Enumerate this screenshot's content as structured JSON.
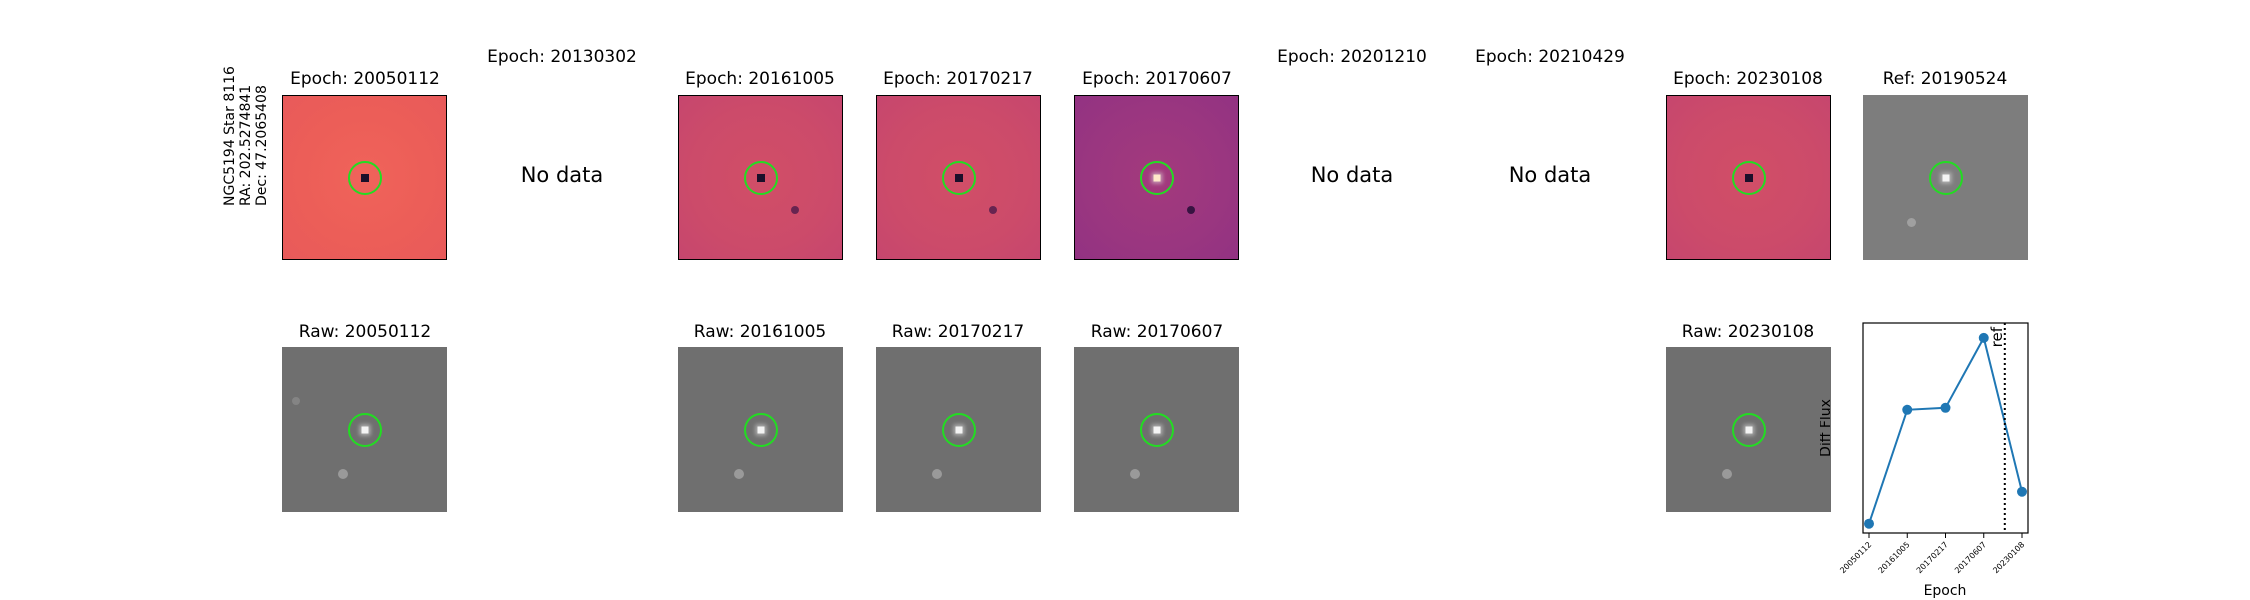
{
  "star": {
    "name": "NGC5194 Star 8116",
    "ra": "RA: 202.5274841",
    "dec": "Dec: 47.2065408"
  },
  "top_row": [
    {
      "title": "Epoch: 20050112",
      "state": "image",
      "colormap": "magma"
    },
    {
      "title": "Epoch: 20130302",
      "state": "no-data",
      "placeholder": "No data"
    },
    {
      "title": "Epoch: 20161005",
      "state": "image",
      "colormap": "magma"
    },
    {
      "title": "Epoch: 20170217",
      "state": "image",
      "colormap": "magma"
    },
    {
      "title": "Epoch: 20170607",
      "state": "image",
      "colormap": "magma"
    },
    {
      "title": "Epoch: 20201210",
      "state": "no-data",
      "placeholder": "No data"
    },
    {
      "title": "Epoch: 20210429",
      "state": "no-data",
      "placeholder": "No data"
    },
    {
      "title": "Epoch: 20230108",
      "state": "image",
      "colormap": "magma"
    },
    {
      "title": "Ref: 20190524",
      "state": "image",
      "colormap": "gray"
    }
  ],
  "bottom_row": [
    {
      "title": "Raw: 20050112"
    },
    {
      "title": "Raw: 20161005"
    },
    {
      "title": "Raw: 20170217"
    },
    {
      "title": "Raw: 20170607"
    },
    {
      "title": "Raw: 20230108"
    }
  ],
  "aperture_color": "#22dd22",
  "chart_data": {
    "type": "line",
    "title": "",
    "xlabel": "Epoch",
    "ylabel": "Diff Flux",
    "categories": [
      "20050112",
      "20161005",
      "20170217",
      "20170607",
      "20230108"
    ],
    "series": [
      {
        "values": [
          0.05,
          0.62,
          0.63,
          0.98,
          0.21
        ],
        "color": "#1f77b4"
      }
    ],
    "ref_marker": {
      "label": "ref",
      "position_between": [
        "20170607",
        "20230108"
      ],
      "x_fraction_of_gap": 0.55,
      "style": "dotted"
    },
    "grid": false,
    "y_ticks_shown": false
  }
}
